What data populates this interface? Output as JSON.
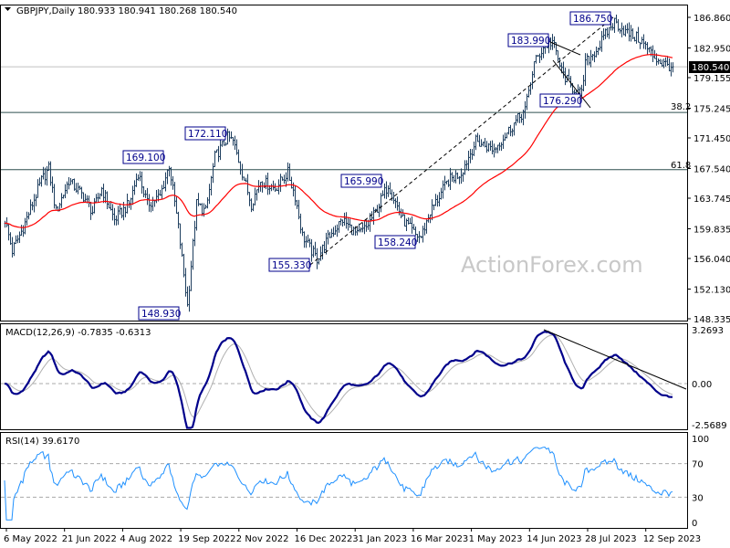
{
  "header": {
    "symbol": "GBPJPY,Daily",
    "ohlc": "180.933 180.941 180.268 180.540"
  },
  "watermark": "ActionForex.com",
  "chart_data": [
    {
      "type": "ohlc",
      "title": "GBPJPY,Daily",
      "ylim": [
        148.335,
        186.86
      ],
      "y_ticks": [
        "186.860",
        "182.950",
        "179.155",
        "175.245",
        "171.450",
        "167.540",
        "163.745",
        "159.835",
        "156.040",
        "152.130",
        "148.335"
      ],
      "current_price": "180.540",
      "price_path": [
        [
          0,
          161
        ],
        [
          4,
          157
        ],
        [
          10,
          160
        ],
        [
          20,
          166
        ],
        [
          24,
          167.5
        ],
        [
          28,
          162
        ],
        [
          35,
          166
        ],
        [
          43,
          164
        ],
        [
          48,
          162
        ],
        [
          53,
          165
        ],
        [
          60,
          161
        ],
        [
          68,
          163
        ],
        [
          73,
          167
        ],
        [
          78,
          163
        ],
        [
          85,
          164
        ],
        [
          90,
          168
        ],
        [
          95,
          160
        ],
        [
          100,
          150
        ],
        [
          105,
          163
        ],
        [
          110,
          162
        ],
        [
          115,
          169
        ],
        [
          122,
          171.5
        ],
        [
          125,
          171
        ],
        [
          130,
          167
        ],
        [
          135,
          163
        ],
        [
          140,
          166
        ],
        [
          148,
          165
        ],
        [
          155,
          167
        ],
        [
          159,
          164
        ],
        [
          163,
          159
        ],
        [
          168,
          157
        ],
        [
          171,
          156
        ],
        [
          178,
          159
        ],
        [
          185,
          161
        ],
        [
          193,
          159
        ],
        [
          198,
          160
        ],
        [
          203,
          162
        ],
        [
          210,
          165.5
        ],
        [
          218,
          161
        ],
        [
          225,
          159
        ],
        [
          228,
          158.8
        ],
        [
          233,
          162
        ],
        [
          243,
          166
        ],
        [
          250,
          167
        ],
        [
          258,
          171
        ],
        [
          268,
          170
        ],
        [
          278,
          173
        ],
        [
          285,
          175
        ],
        [
          290,
          181
        ],
        [
          295,
          183
        ],
        [
          300,
          183.8
        ],
        [
          305,
          180
        ],
        [
          310,
          178
        ],
        [
          316,
          177
        ],
        [
          318,
          181
        ],
        [
          325,
          183
        ],
        [
          330,
          185
        ],
        [
          334,
          186.3
        ],
        [
          340,
          185
        ],
        [
          348,
          184
        ],
        [
          355,
          182
        ],
        [
          360,
          181
        ],
        [
          366,
          180.54
        ]
      ],
      "ma_color": "#ff0000",
      "bar_color": "#1f3f5f",
      "fib_levels": [
        {
          "label": "38.2",
          "value": 174.7
        },
        {
          "label": "61.8",
          "value": 167.4
        }
      ],
      "swing_labels": [
        "186.750",
        "183.990",
        "176.290",
        "172.110",
        "169.100",
        "165.990",
        "158.240",
        "155.330",
        "148.930"
      ]
    },
    {
      "type": "line",
      "title": "MACD(12,26,9) -0.7835 -0.6313",
      "ylim": [
        -2.5689,
        3.2693
      ],
      "y_ticks": [
        "3.2693",
        "0.00",
        "-2.5689"
      ],
      "series": [
        {
          "name": "MACD",
          "color": "#00008b"
        },
        {
          "name": "Signal",
          "color": "#b0b0b0"
        }
      ]
    },
    {
      "type": "line",
      "title": "RSI(14) 39.6170",
      "ylim": [
        0,
        100
      ],
      "y_ticks": [
        "100",
        "70",
        "30",
        "0"
      ],
      "series": [
        {
          "name": "RSI",
          "color": "#1e90ff"
        }
      ]
    }
  ],
  "x_ticks": [
    "6 May 2022",
    "21 Jun 2022",
    "4 Aug 2022",
    "19 Sep 2022",
    "2 Nov 2022",
    "16 Dec 2022",
    "31 Jan 2023",
    "16 Mar 2023",
    "1 May 2023",
    "14 Jun 2023",
    "28 Jul 2023",
    "12 Sep 2023"
  ]
}
